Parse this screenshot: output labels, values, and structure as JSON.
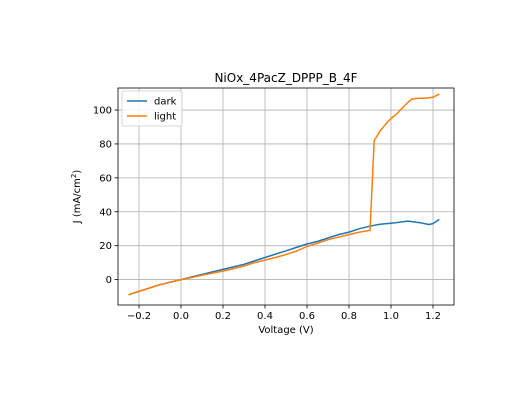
{
  "chart_data": {
    "type": "line",
    "title": "NiOx_4PacZ_DPPP_B_4F",
    "xlabel": "Voltage (V)",
    "ylabel_main": "J (mA/cm",
    "ylabel_sup": "2",
    "ylabel_close": ")",
    "xlim": [
      -0.3,
      1.3
    ],
    "ylim": [
      -15,
      113
    ],
    "xticks": [
      -0.2,
      0.0,
      0.2,
      0.4,
      0.6,
      0.8,
      1.0,
      1.2
    ],
    "xtick_labels": [
      "−0.2",
      "0.0",
      "0.2",
      "0.4",
      "0.6",
      "0.8",
      "1.0",
      "1.2"
    ],
    "yticks": [
      0,
      20,
      40,
      60,
      80,
      100
    ],
    "ytick_labels": [
      "0",
      "20",
      "40",
      "60",
      "80",
      "100"
    ],
    "grid": true,
    "legend_position": "top-left",
    "series": [
      {
        "name": "dark",
        "color": "#1f77b4",
        "x": [
          -0.25,
          -0.2,
          -0.15,
          -0.1,
          -0.05,
          0.0,
          0.05,
          0.1,
          0.15,
          0.2,
          0.25,
          0.3,
          0.35,
          0.4,
          0.45,
          0.5,
          0.55,
          0.6,
          0.65,
          0.7,
          0.75,
          0.8,
          0.85,
          0.9,
          0.92,
          0.94,
          0.96,
          0.98,
          1.0,
          1.02,
          1.04,
          1.06,
          1.08,
          1.1,
          1.12,
          1.14,
          1.16,
          1.18,
          1.2,
          1.23
        ],
        "y": [
          -9,
          -7,
          -5,
          -3,
          -1.5,
          0,
          1.5,
          3,
          4.5,
          6,
          7.5,
          9,
          11,
          13,
          15,
          17,
          19,
          21,
          22.5,
          24.5,
          26.5,
          28,
          30,
          31.5,
          32,
          32.5,
          32.8,
          33,
          33.2,
          33.5,
          33.8,
          34.2,
          34.5,
          34.2,
          33.8,
          33.5,
          33,
          32.5,
          33,
          35.5
        ]
      },
      {
        "name": "light",
        "color": "#ff7f0e",
        "x": [
          -0.25,
          -0.2,
          -0.15,
          -0.1,
          -0.05,
          0.0,
          0.05,
          0.1,
          0.15,
          0.2,
          0.25,
          0.3,
          0.35,
          0.4,
          0.45,
          0.5,
          0.55,
          0.6,
          0.65,
          0.7,
          0.75,
          0.8,
          0.85,
          0.9,
          0.92,
          0.95,
          0.98,
          1.0,
          1.03,
          1.06,
          1.08,
          1.1,
          1.13,
          1.16,
          1.2,
          1.23
        ],
        "y": [
          -9,
          -7,
          -5,
          -3,
          -1.5,
          0,
          1.2,
          2.5,
          3.8,
          5,
          6.5,
          8,
          10,
          11.5,
          13,
          14.8,
          16.8,
          19.5,
          21.5,
          23.5,
          25,
          26.5,
          28,
          29,
          82,
          88,
          92.5,
          95,
          98,
          102,
          104.5,
          106.5,
          107,
          107,
          107.5,
          109.5
        ]
      }
    ]
  }
}
